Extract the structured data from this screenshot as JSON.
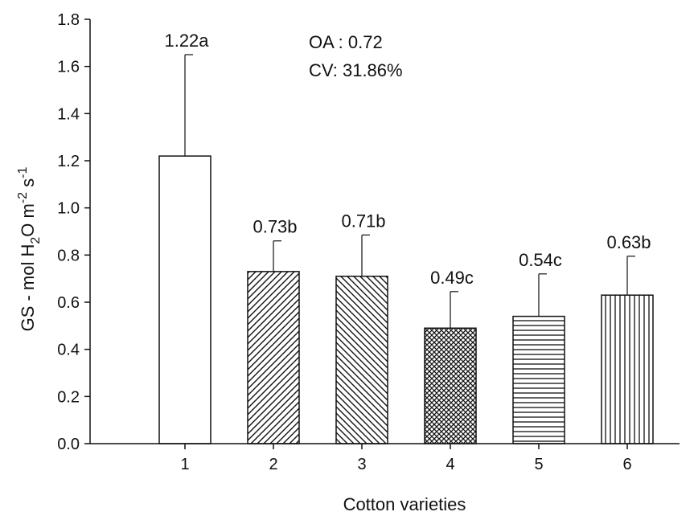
{
  "chart_data": {
    "type": "bar",
    "categories": [
      "1",
      "2",
      "3",
      "4",
      "5",
      "6"
    ],
    "values": [
      1.22,
      0.73,
      0.71,
      0.49,
      0.54,
      0.63
    ],
    "error_upper": [
      1.65,
      0.86,
      0.885,
      0.645,
      0.72,
      0.795
    ],
    "bar_labels": [
      "1.22a",
      "0.73b",
      "0.71b",
      "0.49c",
      "0.54c",
      "0.63b"
    ],
    "patterns": [
      "none",
      "diag-up",
      "diag-down",
      "crosshatch",
      "horizontal",
      "vertical"
    ],
    "xlabel": "Cotton varieties",
    "ylabel_parts": {
      "prefix": "GS - mol H",
      "sub": "2",
      "mid": "O m",
      "sup1": "-2",
      "mid2": " s",
      "sup2": "-1"
    },
    "ylim": [
      0.0,
      1.8
    ],
    "yticks": [
      "0.0",
      "0.2",
      "0.4",
      "0.6",
      "0.8",
      "1.0",
      "1.2",
      "1.4",
      "1.6",
      "1.8"
    ],
    "annotations": [
      "OA : 0.72",
      "CV: 31.86%"
    ],
    "grid": false
  }
}
